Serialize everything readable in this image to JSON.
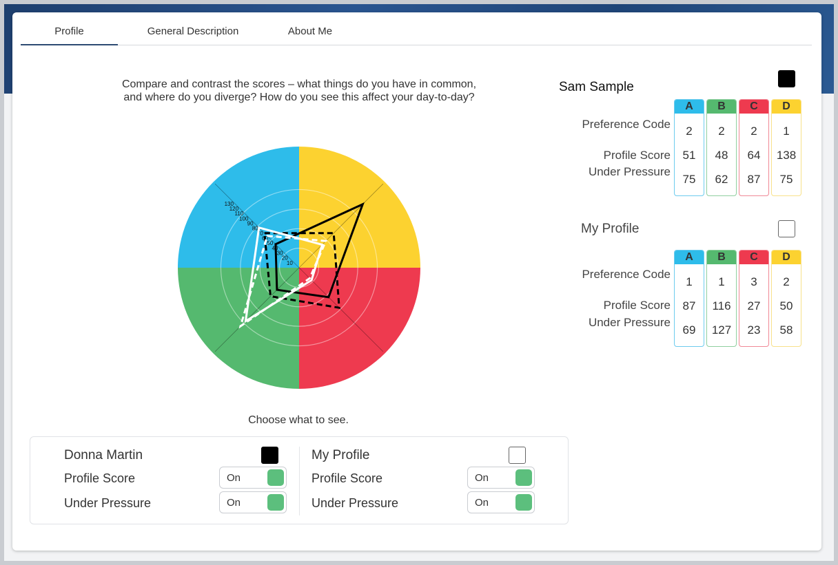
{
  "tabs": [
    {
      "label": "Profile",
      "active": true
    },
    {
      "label": "General Description",
      "active": false
    },
    {
      "label": "About Me",
      "active": false
    }
  ],
  "prompt": "Compare and contrast the scores – what things do you have in common, and where do you diverge? How do you see this affect your day-to-day?",
  "choose_label": "Choose what to see.",
  "colors": {
    "A": "#2ebcea",
    "B": "#55b96f",
    "C": "#ee3a4f",
    "D": "#fcd230",
    "A_light": "#6ccbee",
    "B_light": "#8fcf9f",
    "C_light": "#f08896",
    "D_light": "#f8e18a",
    "toggle_on": "#5cbf7d"
  },
  "radar": {
    "scale_labels": [
      "10",
      "20",
      "30",
      "40",
      "50",
      "60",
      "70",
      "80",
      "90",
      "100",
      "110",
      "120",
      "130"
    ],
    "max": 140,
    "ring_values": [
      30,
      60,
      90,
      120
    ],
    "series": [
      {
        "owner": "Sam Sample",
        "kind": "Profile Score",
        "color": "#000000",
        "dashed": false,
        "values": {
          "A": 51,
          "B": 48,
          "C": 64,
          "D": 138
        }
      },
      {
        "owner": "Sam Sample",
        "kind": "Under Pressure",
        "color": "#000000",
        "dashed": true,
        "values": {
          "A": 75,
          "B": 62,
          "C": 87,
          "D": 75
        }
      },
      {
        "owner": "My Profile",
        "kind": "Profile Score",
        "color": "#ffffff",
        "dashed": false,
        "values": {
          "A": 87,
          "B": 116,
          "C": 27,
          "D": 50
        }
      },
      {
        "owner": "My Profile",
        "kind": "Under Pressure",
        "color": "#ffffff",
        "dashed": true,
        "values": {
          "A": 69,
          "B": 127,
          "C": 23,
          "D": 58
        }
      }
    ]
  },
  "toggles": {
    "left": {
      "name": "Donna Martin",
      "swatch": "black",
      "rows": [
        {
          "label": "Profile Score",
          "state": "On"
        },
        {
          "label": "Under Pressure",
          "state": "On"
        }
      ]
    },
    "right": {
      "name": "My Profile",
      "swatch": "white",
      "rows": [
        {
          "label": "Profile Score",
          "state": "On"
        },
        {
          "label": "Under Pressure",
          "state": "On"
        }
      ]
    }
  },
  "profiles": [
    {
      "name": "Sam Sample",
      "swatch": "black",
      "headers": [
        "A",
        "B",
        "C",
        "D"
      ],
      "row_labels": [
        "Preference Code",
        "Profile Score",
        "Under Pressure"
      ],
      "preference_code": [
        "2",
        "2",
        "2",
        "1"
      ],
      "profile_score": [
        "51",
        "48",
        "64",
        "138"
      ],
      "under_pressure": [
        "75",
        "62",
        "87",
        "75"
      ]
    },
    {
      "name": "My Profile",
      "swatch": "white",
      "headers": [
        "A",
        "B",
        "C",
        "D"
      ],
      "row_labels": [
        "Preference Code",
        "Profile Score",
        "Under Pressure"
      ],
      "preference_code": [
        "1",
        "1",
        "3",
        "2"
      ],
      "profile_score": [
        "87",
        "116",
        "27",
        "50"
      ],
      "under_pressure": [
        "69",
        "127",
        "23",
        "58"
      ]
    }
  ]
}
